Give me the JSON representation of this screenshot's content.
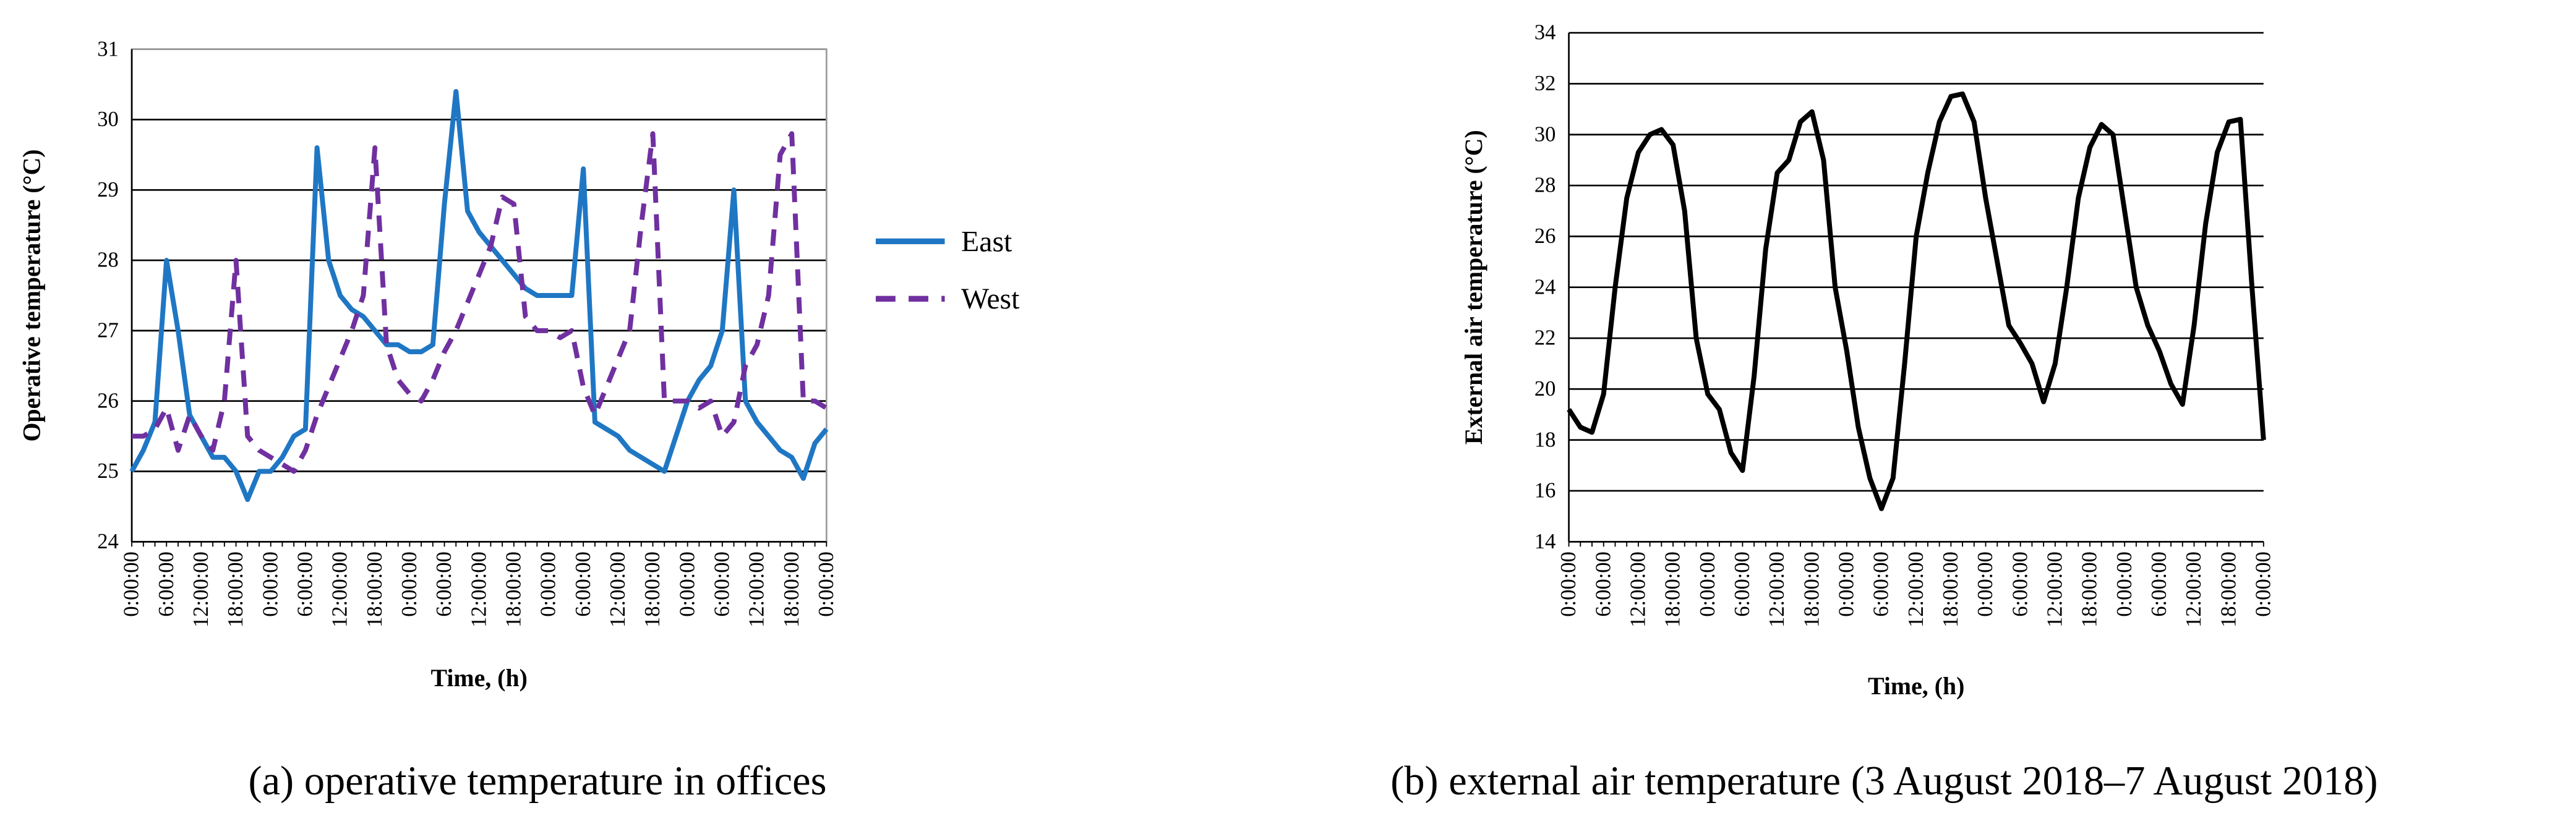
{
  "chart_data": [
    {
      "type": "line",
      "x_label": "Time, (h)",
      "y_label": "Operative temperature (°C)",
      "caption": "(a) operative temperature in offices",
      "categories": [
        "0:00:00",
        null,
        null,
        "6:00:00",
        null,
        null,
        "12:00:00",
        null,
        null,
        "18:00:00",
        null,
        null,
        "0:00:00",
        null,
        null,
        "6:00:00",
        null,
        null,
        "12:00:00",
        null,
        null,
        "18:00:00",
        null,
        null,
        "0:00:00",
        null,
        null,
        "6:00:00",
        null,
        null,
        "12:00:00",
        null,
        null,
        "18:00:00",
        null,
        null,
        "0:00:00",
        null,
        null,
        "6:00:00",
        null,
        null,
        "12:00:00",
        null,
        null,
        "18:00:00",
        null,
        null,
        "0:00:00",
        null,
        null,
        "6:00:00",
        null,
        null,
        "12:00:00",
        null,
        null,
        "18:00:00",
        null,
        null,
        "0:00:00"
      ],
      "series": [
        {
          "name": "East",
          "color": "#1f77c4",
          "line_style": "solid",
          "values": [
            25.0,
            25.3,
            25.7,
            28.0,
            27.0,
            25.8,
            25.5,
            25.2,
            25.2,
            25.0,
            24.6,
            25.0,
            25.0,
            25.2,
            25.5,
            25.6,
            29.6,
            28.0,
            27.5,
            27.3,
            27.2,
            27.0,
            26.8,
            26.8,
            26.7,
            26.7,
            26.8,
            28.8,
            30.4,
            28.7,
            28.4,
            28.2,
            28.0,
            27.8,
            27.6,
            27.5,
            27.5,
            27.5,
            27.5,
            29.3,
            25.7,
            25.6,
            25.5,
            25.3,
            25.2,
            25.1,
            25.0,
            25.5,
            26.0,
            26.3,
            26.5,
            27.0,
            29.0,
            26.0,
            25.7,
            25.5,
            25.3,
            25.2,
            24.9,
            25.4,
            25.6
          ]
        },
        {
          "name": "West",
          "color": "#7030a0",
          "line_style": "dashed",
          "values": [
            25.5,
            25.5,
            25.6,
            25.9,
            25.3,
            25.8,
            25.5,
            25.3,
            26.0,
            28.0,
            25.5,
            25.3,
            25.2,
            25.1,
            25.0,
            25.3,
            25.8,
            26.2,
            26.6,
            27.0,
            27.5,
            29.6,
            26.8,
            26.3,
            26.1,
            26.0,
            26.3,
            26.7,
            27.0,
            27.4,
            27.8,
            28.2,
            28.9,
            28.8,
            27.2,
            27.0,
            27.0,
            26.9,
            27.0,
            26.2,
            25.8,
            26.2,
            26.6,
            27.0,
            28.5,
            29.8,
            26.0,
            26.0,
            26.0,
            25.9,
            26.0,
            25.5,
            25.7,
            26.5,
            26.8,
            27.5,
            29.5,
            29.8,
            26.0,
            26.0,
            25.9
          ]
        }
      ],
      "ylim": [
        24,
        31
      ],
      "yticks": [
        24,
        25,
        26,
        27,
        28,
        29,
        30,
        31
      ],
      "grid": true,
      "legend": "right"
    },
    {
      "type": "line",
      "x_label": "Time, (h)",
      "y_label": "External air temperature (°C)",
      "caption": "(b) external air temperature (3 August 2018–7 August 2018)",
      "categories": [
        "0:00:00",
        null,
        null,
        "6:00:00",
        null,
        null,
        "12:00:00",
        null,
        null,
        "18:00:00",
        null,
        null,
        "0:00:00",
        null,
        null,
        "6:00:00",
        null,
        null,
        "12:00:00",
        null,
        null,
        "18:00:00",
        null,
        null,
        "0:00:00",
        null,
        null,
        "6:00:00",
        null,
        null,
        "12:00:00",
        null,
        null,
        "18:00:00",
        null,
        null,
        "0:00:00",
        null,
        null,
        "6:00:00",
        null,
        null,
        "12:00:00",
        null,
        null,
        "18:00:00",
        null,
        null,
        "0:00:00",
        null,
        null,
        "6:00:00",
        null,
        null,
        "12:00:00",
        null,
        null,
        "18:00:00",
        null,
        null,
        "0:00:00"
      ],
      "series": [
        {
          "color": "#000000",
          "line_style": "solid",
          "values": [
            19.2,
            18.5,
            18.3,
            19.8,
            24.0,
            27.5,
            29.3,
            30.0,
            30.2,
            29.6,
            27.0,
            22.0,
            19.8,
            19.2,
            17.5,
            16.8,
            20.5,
            25.5,
            28.5,
            29.0,
            30.5,
            30.9,
            29.0,
            24.0,
            21.5,
            18.5,
            16.5,
            15.3,
            16.5,
            21.0,
            26.0,
            28.5,
            30.5,
            31.5,
            31.6,
            30.5,
            27.5,
            25.0,
            22.5,
            21.8,
            21.0,
            19.5,
            21.0,
            24.0,
            27.5,
            29.5,
            30.4,
            30.0,
            27.0,
            24.0,
            22.5,
            21.5,
            20.2,
            19.4,
            22.5,
            26.5,
            29.3,
            30.5,
            30.6,
            24.0,
            18.0
          ]
        }
      ],
      "ylim": [
        14,
        34
      ],
      "yticks": [
        14,
        16,
        18,
        20,
        22,
        24,
        26,
        28,
        30,
        32,
        34
      ],
      "grid": true
    }
  ]
}
